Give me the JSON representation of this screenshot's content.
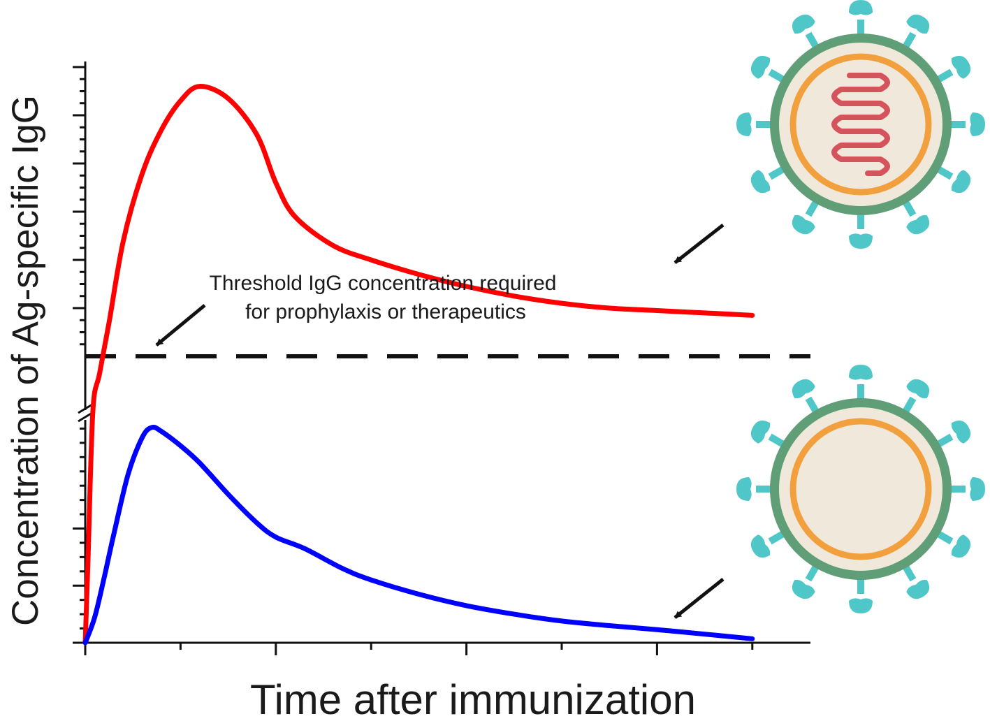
{
  "chart_data": {
    "type": "line",
    "title": "",
    "xlabel": "Time after immunization",
    "ylabel": "Concentration of Ag-specific IgG",
    "y_axis_break": true,
    "grid": false,
    "threshold": {
      "label_line1": "Threshold IgG concentration required",
      "label_line2": "for prophylaxis or therapeutics",
      "style": "dashed",
      "color": "#111111"
    },
    "series": [
      {
        "color": "#ff0000",
        "icon": "virus-with-genome-icon",
        "points": [
          [
            0,
            0
          ],
          [
            0.03,
            1.5
          ],
          [
            0.08,
            4.2
          ],
          [
            0.15,
            6.8
          ],
          [
            0.25,
            8.7
          ],
          [
            0.4,
            10.4
          ],
          [
            0.6,
            11.8
          ],
          [
            0.8,
            12.7
          ],
          [
            1.0,
            13.3
          ],
          [
            1.2,
            13.6
          ],
          [
            1.5,
            13.35
          ],
          [
            1.8,
            12.6
          ],
          [
            2.0,
            11.6
          ],
          [
            2.2,
            10.9
          ],
          [
            2.6,
            10.3
          ],
          [
            3.0,
            10.0
          ],
          [
            3.5,
            9.7
          ],
          [
            4.0,
            9.45
          ],
          [
            4.5,
            9.25
          ],
          [
            5.0,
            9.1
          ],
          [
            5.5,
            9.0
          ],
          [
            6.0,
            8.95
          ],
          [
            6.5,
            8.9
          ],
          [
            7.0,
            8.85
          ]
        ]
      },
      {
        "color": "#0000ff",
        "icon": "virus-empty-icon",
        "points": [
          [
            0,
            0
          ],
          [
            0.1,
            0.45
          ],
          [
            0.2,
            1.15
          ],
          [
            0.3,
            1.9
          ],
          [
            0.45,
            2.95
          ],
          [
            0.6,
            3.6
          ],
          [
            0.7,
            3.77
          ],
          [
            0.8,
            3.7
          ],
          [
            1.0,
            3.45
          ],
          [
            1.2,
            3.15
          ],
          [
            1.5,
            2.6
          ],
          [
            1.8,
            2.1
          ],
          [
            2.0,
            1.85
          ],
          [
            2.3,
            1.65
          ],
          [
            2.7,
            1.3
          ],
          [
            3.0,
            1.1
          ],
          [
            3.5,
            0.85
          ],
          [
            4.0,
            0.65
          ],
          [
            4.5,
            0.5
          ],
          [
            5.0,
            0.38
          ],
          [
            5.5,
            0.3
          ],
          [
            6.0,
            0.23
          ],
          [
            6.5,
            0.15
          ],
          [
            7.0,
            0.07
          ]
        ]
      }
    ],
    "xlim": [
      0,
      7.6
    ],
    "x_major_ticks": [
      0,
      2,
      4,
      6
    ],
    "x_minor_ticks": [
      1,
      3,
      5,
      7
    ],
    "ylim_lower": [
      0,
      4
    ],
    "ylim_upper": [
      8,
      14
    ],
    "threshold_value": 8,
    "y_major_ticks_lower": [
      0,
      1,
      2
    ],
    "y_major_ticks_upper": [
      9,
      10,
      11,
      12,
      13,
      14
    ],
    "y_minor_step": 0.25
  }
}
